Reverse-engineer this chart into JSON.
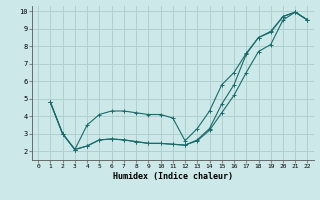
{
  "xlabel": "Humidex (Indice chaleur)",
  "bg_color": "#cce8e8",
  "grid_color": "#b0d0d0",
  "line_color": "#1a6b6b",
  "xlim": [
    -0.5,
    22.5
  ],
  "ylim": [
    1.5,
    10.3
  ],
  "yticks": [
    2,
    3,
    4,
    5,
    6,
    7,
    8,
    9,
    10
  ],
  "xticks": [
    0,
    1,
    2,
    3,
    4,
    5,
    6,
    7,
    8,
    9,
    10,
    11,
    12,
    13,
    14,
    15,
    16,
    17,
    18,
    19,
    20,
    21,
    22
  ],
  "line1_x": [
    1,
    2,
    3,
    4,
    5,
    6,
    7,
    8,
    9,
    10,
    11,
    12,
    13,
    14,
    15,
    16,
    17,
    18,
    19,
    20,
    21,
    22
  ],
  "line1_y": [
    4.8,
    3.0,
    2.1,
    3.5,
    4.1,
    4.3,
    4.3,
    4.2,
    4.1,
    4.1,
    3.9,
    2.6,
    3.3,
    4.3,
    5.8,
    6.5,
    7.6,
    8.5,
    8.8,
    9.7,
    9.95,
    9.5
  ],
  "line2_x": [
    1,
    2,
    3,
    4,
    5,
    6,
    7,
    8,
    9,
    10,
    11,
    12,
    13,
    14,
    15,
    16,
    17,
    18,
    19,
    20,
    21,
    22
  ],
  "line2_y": [
    4.8,
    3.0,
    2.1,
    2.3,
    2.65,
    2.7,
    2.65,
    2.55,
    2.45,
    2.45,
    2.4,
    2.35,
    2.6,
    3.2,
    4.2,
    5.2,
    6.5,
    7.7,
    8.1,
    9.5,
    9.95,
    9.5
  ],
  "line3_x": [
    1,
    2,
    3,
    4,
    5,
    6,
    7,
    8,
    9,
    10,
    11,
    12,
    13,
    14,
    15,
    16,
    17,
    18,
    19,
    20,
    21,
    22
  ],
  "line3_y": [
    4.8,
    3.0,
    2.1,
    2.3,
    2.65,
    2.7,
    2.65,
    2.55,
    2.45,
    2.45,
    2.4,
    2.35,
    2.65,
    3.3,
    4.7,
    5.8,
    7.55,
    8.5,
    8.85,
    9.7,
    9.95,
    9.5
  ]
}
